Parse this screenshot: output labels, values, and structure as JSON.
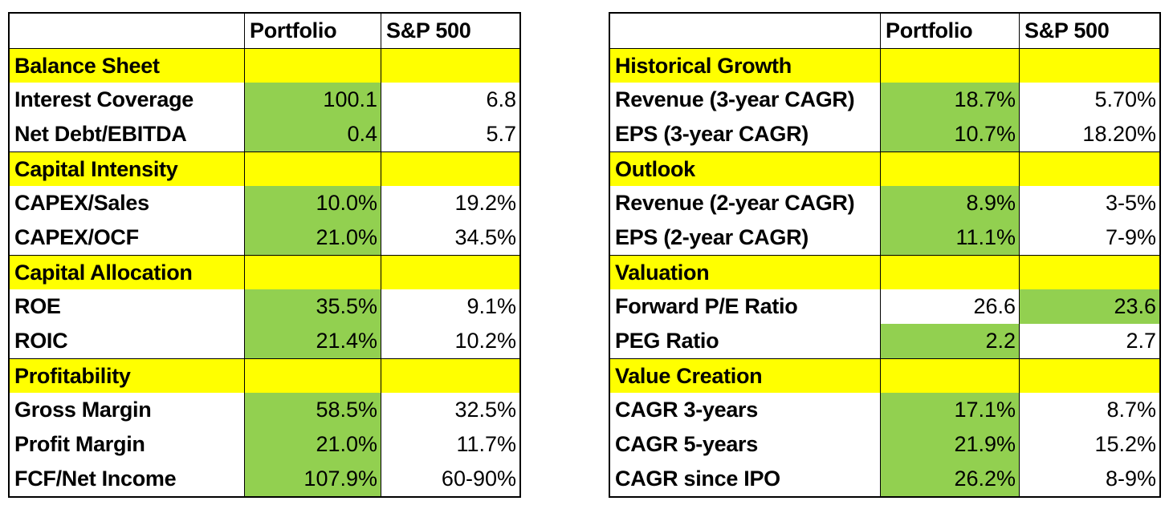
{
  "colors": {
    "section_fill": "#ffff00",
    "highlight_fill": "#92d050",
    "border": "#000000"
  },
  "left": {
    "header": {
      "portfolio": "Portfolio",
      "sp500": "S&P 500"
    },
    "sections": [
      {
        "title": "Balance Sheet",
        "rows": [
          {
            "label": "Interest Coverage",
            "portfolio": "100.1",
            "sp500": "6.8",
            "highlight": "portfolio"
          },
          {
            "label": "Net Debt/EBITDA",
            "portfolio": "0.4",
            "sp500": "5.7",
            "highlight": "portfolio"
          }
        ]
      },
      {
        "title": "Capital Intensity",
        "rows": [
          {
            "label": "CAPEX/Sales",
            "portfolio": "10.0%",
            "sp500": "19.2%",
            "highlight": "portfolio"
          },
          {
            "label": "CAPEX/OCF",
            "portfolio": "21.0%",
            "sp500": "34.5%",
            "highlight": "portfolio"
          }
        ]
      },
      {
        "title": "Capital Allocation",
        "rows": [
          {
            "label": "ROE",
            "portfolio": "35.5%",
            "sp500": "9.1%",
            "highlight": "portfolio"
          },
          {
            "label": "ROIC",
            "portfolio": "21.4%",
            "sp500": "10.2%",
            "highlight": "portfolio"
          }
        ]
      },
      {
        "title": "Profitability",
        "rows": [
          {
            "label": "Gross Margin",
            "portfolio": "58.5%",
            "sp500": "32.5%",
            "highlight": "portfolio"
          },
          {
            "label": "Profit Margin",
            "portfolio": "21.0%",
            "sp500": "11.7%",
            "highlight": "portfolio"
          },
          {
            "label": "FCF/Net Income",
            "portfolio": "107.9%",
            "sp500": "60-90%",
            "highlight": "portfolio"
          }
        ]
      }
    ]
  },
  "right": {
    "header": {
      "portfolio": "Portfolio",
      "sp500": "S&P 500"
    },
    "sections": [
      {
        "title": "Historical Growth",
        "rows": [
          {
            "label": "Revenue (3-year CAGR)",
            "portfolio": "18.7%",
            "sp500": "5.70%",
            "highlight": "portfolio"
          },
          {
            "label": "EPS (3-year CAGR)",
            "portfolio": "10.7%",
            "sp500": "18.20%",
            "highlight": "portfolio"
          }
        ]
      },
      {
        "title": "Outlook",
        "rows": [
          {
            "label": "Revenue (2-year CAGR)",
            "portfolio": "8.9%",
            "sp500": "3-5%",
            "highlight": "portfolio"
          },
          {
            "label": "EPS (2-year CAGR)",
            "portfolio": "11.1%",
            "sp500": "7-9%",
            "highlight": "portfolio"
          }
        ]
      },
      {
        "title": "Valuation",
        "rows": [
          {
            "label": "Forward P/E Ratio",
            "portfolio": "26.6",
            "sp500": "23.6",
            "highlight": "sp500"
          },
          {
            "label": "PEG Ratio",
            "portfolio": "2.2",
            "sp500": "2.7",
            "highlight": "portfolio"
          }
        ]
      },
      {
        "title": "Value Creation",
        "rows": [
          {
            "label": "CAGR 3-years",
            "portfolio": "17.1%",
            "sp500": "8.7%",
            "highlight": "portfolio"
          },
          {
            "label": "CAGR 5-years",
            "portfolio": "21.9%",
            "sp500": "15.2%",
            "highlight": "portfolio"
          },
          {
            "label": "CAGR since IPO",
            "portfolio": "26.2%",
            "sp500": "8-9%",
            "highlight": "portfolio"
          }
        ]
      }
    ]
  }
}
